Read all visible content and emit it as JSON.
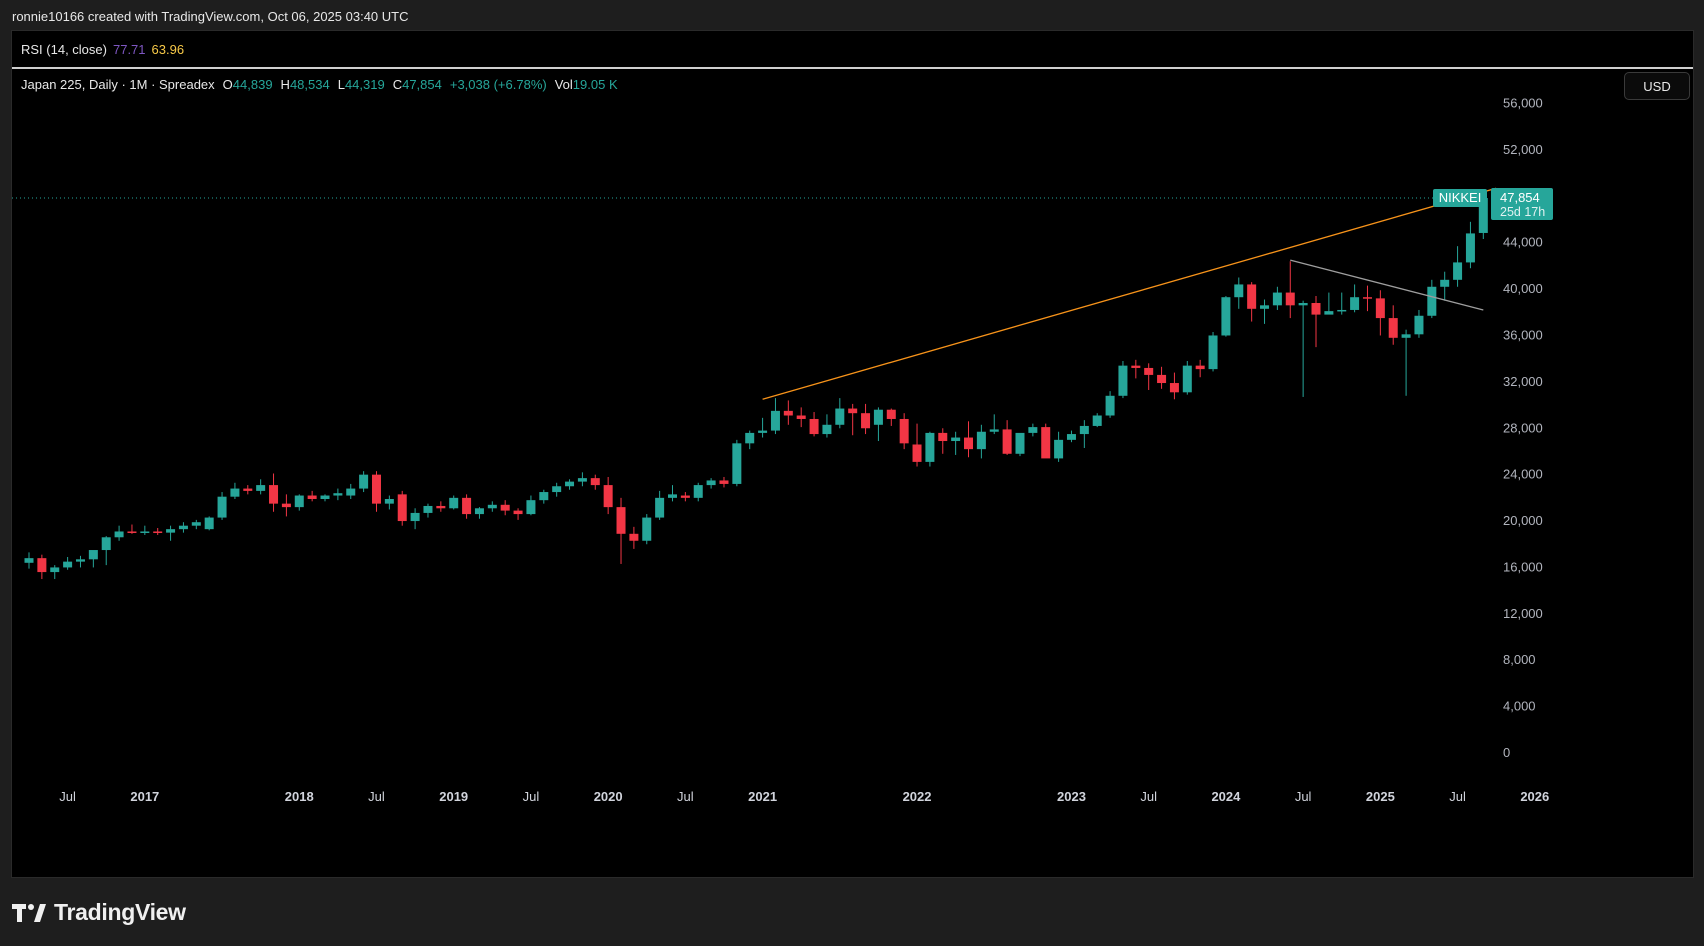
{
  "header": {
    "caption": "ronnie10166 created with TradingView.com, Oct 06, 2025 03:40 UTC"
  },
  "rsi": {
    "name": "RSI (14, close)",
    "value1": "77.71",
    "value2": "63.96"
  },
  "legend": {
    "title": "Japan 225, Daily · 1M · Spreadex",
    "open_label": "O",
    "open": "44,839",
    "high_label": "H",
    "high": "48,534",
    "low_label": "L",
    "low": "44,319",
    "close_label": "C",
    "close": "47,854",
    "change": "+3,038 (+6.78%)",
    "vol_label": "Vol",
    "vol": "19.05 K"
  },
  "currency_button": "USD",
  "price_tag": {
    "symbol": "NIKKEI",
    "price": "47,854",
    "countdown": "25d 17h"
  },
  "watermark": {
    "brand": "TradingView"
  },
  "colors": {
    "up": "#26a69a",
    "down": "#f23645",
    "trendline": "#f7931a",
    "trendline2": "#9e9e9e",
    "background": "#000000"
  },
  "chart_data": {
    "type": "candlestick",
    "symbol": "NIKKEI",
    "ylim": [
      -1000,
      57500
    ],
    "y_ticks": [
      0,
      4000,
      8000,
      12000,
      16000,
      20000,
      24000,
      28000,
      32000,
      36000,
      40000,
      44000,
      52000,
      56000
    ],
    "y_tick_labels": [
      "0",
      "4,000",
      "8,000",
      "12,000",
      "16,000",
      "20,000",
      "24,000",
      "28,000",
      "32,000",
      "36,000",
      "40,000",
      "44,000",
      "52,000",
      "56,000"
    ],
    "x_ticks": [
      {
        "label": "Jul",
        "bold": false,
        "date": "2016-07"
      },
      {
        "label": "2017",
        "bold": true,
        "date": "2017-01"
      },
      {
        "label": "2018",
        "bold": true,
        "date": "2018-01"
      },
      {
        "label": "Jul",
        "bold": false,
        "date": "2018-07"
      },
      {
        "label": "2019",
        "bold": true,
        "date": "2019-01"
      },
      {
        "label": "Jul",
        "bold": false,
        "date": "2019-07"
      },
      {
        "label": "2020",
        "bold": true,
        "date": "2020-01"
      },
      {
        "label": "Jul",
        "bold": false,
        "date": "2020-07"
      },
      {
        "label": "2021",
        "bold": true,
        "date": "2021-01"
      },
      {
        "label": "2022",
        "bold": true,
        "date": "2022-01"
      },
      {
        "label": "2023",
        "bold": true,
        "date": "2023-01"
      },
      {
        "label": "Jul",
        "bold": false,
        "date": "2023-07"
      },
      {
        "label": "2024",
        "bold": true,
        "date": "2024-01"
      },
      {
        "label": "Jul",
        "bold": false,
        "date": "2024-07"
      },
      {
        "label": "2025",
        "bold": true,
        "date": "2025-01"
      },
      {
        "label": "Jul",
        "bold": false,
        "date": "2025-07"
      },
      {
        "label": "2026",
        "bold": true,
        "date": "2026-01"
      }
    ],
    "last_price": 47854,
    "candles": [
      {
        "date": "2016-04",
        "o": 16400,
        "h": 17300,
        "l": 15900,
        "c": 16800
      },
      {
        "date": "2016-05",
        "o": 16800,
        "h": 17100,
        "l": 15000,
        "c": 15600
      },
      {
        "date": "2016-06",
        "o": 15600,
        "h": 16200,
        "l": 15000,
        "c": 16000
      },
      {
        "date": "2016-07",
        "o": 16000,
        "h": 16900,
        "l": 15800,
        "c": 16500
      },
      {
        "date": "2016-08",
        "o": 16500,
        "h": 17000,
        "l": 16000,
        "c": 16700
      },
      {
        "date": "2016-09",
        "o": 16700,
        "h": 17300,
        "l": 16000,
        "c": 17500
      },
      {
        "date": "2016-10",
        "o": 17500,
        "h": 18700,
        "l": 16200,
        "c": 18600
      },
      {
        "date": "2016-11",
        "o": 18600,
        "h": 19600,
        "l": 18300,
        "c": 19100
      },
      {
        "date": "2016-12",
        "o": 19100,
        "h": 19700,
        "l": 18900,
        "c": 19000
      },
      {
        "date": "2017-01",
        "o": 19000,
        "h": 19600,
        "l": 18800,
        "c": 19100
      },
      {
        "date": "2017-02",
        "o": 19100,
        "h": 19400,
        "l": 18800,
        "c": 19000
      },
      {
        "date": "2017-03",
        "o": 19000,
        "h": 19600,
        "l": 18300,
        "c": 19300
      },
      {
        "date": "2017-04",
        "o": 19300,
        "h": 19900,
        "l": 19000,
        "c": 19600
      },
      {
        "date": "2017-05",
        "o": 19600,
        "h": 20100,
        "l": 19300,
        "c": 19900
      },
      {
        "date": "2017-06",
        "o": 19300,
        "h": 20400,
        "l": 19200,
        "c": 20300
      },
      {
        "date": "2017-07",
        "o": 20300,
        "h": 22500,
        "l": 20100,
        "c": 22100
      },
      {
        "date": "2017-08",
        "o": 22100,
        "h": 23300,
        "l": 21900,
        "c": 22800
      },
      {
        "date": "2017-09",
        "o": 22800,
        "h": 23100,
        "l": 22300,
        "c": 22600
      },
      {
        "date": "2017-10",
        "o": 22600,
        "h": 23600,
        "l": 22300,
        "c": 23100
      },
      {
        "date": "2017-11",
        "o": 23100,
        "h": 24100,
        "l": 20800,
        "c": 21500
      },
      {
        "date": "2017-12",
        "o": 21500,
        "h": 22300,
        "l": 20400,
        "c": 21200
      },
      {
        "date": "2018-01",
        "o": 21200,
        "h": 22300,
        "l": 20900,
        "c": 22200
      },
      {
        "date": "2018-02",
        "o": 22200,
        "h": 22600,
        "l": 21700,
        "c": 21900
      },
      {
        "date": "2018-03",
        "o": 21900,
        "h": 22300,
        "l": 21700,
        "c": 22200
      },
      {
        "date": "2018-04",
        "o": 22200,
        "h": 22800,
        "l": 21800,
        "c": 22400
      },
      {
        "date": "2018-05",
        "o": 22200,
        "h": 23200,
        "l": 21900,
        "c": 22800
      },
      {
        "date": "2018-06",
        "o": 22800,
        "h": 24300,
        "l": 22500,
        "c": 24000
      },
      {
        "date": "2018-07",
        "o": 24000,
        "h": 24300,
        "l": 20800,
        "c": 21500
      },
      {
        "date": "2018-08",
        "o": 21500,
        "h": 22200,
        "l": 21000,
        "c": 21900
      },
      {
        "date": "2018-09",
        "o": 22300,
        "h": 22600,
        "l": 19600,
        "c": 20000
      },
      {
        "date": "2018-10",
        "o": 20000,
        "h": 21100,
        "l": 19300,
        "c": 20700
      },
      {
        "date": "2018-11",
        "o": 20700,
        "h": 21500,
        "l": 20300,
        "c": 21300
      },
      {
        "date": "2018-12",
        "o": 21300,
        "h": 21700,
        "l": 20800,
        "c": 21100
      },
      {
        "date": "2019-01",
        "o": 21100,
        "h": 22200,
        "l": 21000,
        "c": 22000
      },
      {
        "date": "2019-02",
        "o": 22000,
        "h": 22300,
        "l": 20200,
        "c": 20600
      },
      {
        "date": "2019-03",
        "o": 20600,
        "h": 21200,
        "l": 20200,
        "c": 21100
      },
      {
        "date": "2019-04",
        "o": 21100,
        "h": 21700,
        "l": 20800,
        "c": 21400
      },
      {
        "date": "2019-05",
        "o": 21400,
        "h": 21800,
        "l": 20500,
        "c": 20900
      },
      {
        "date": "2019-06",
        "o": 20900,
        "h": 21100,
        "l": 20100,
        "c": 20600
      },
      {
        "date": "2019-07",
        "o": 20600,
        "h": 22200,
        "l": 20500,
        "c": 21800
      },
      {
        "date": "2019-08",
        "o": 21800,
        "h": 22700,
        "l": 21500,
        "c": 22500
      },
      {
        "date": "2019-09",
        "o": 22500,
        "h": 23300,
        "l": 22100,
        "c": 23000
      },
      {
        "date": "2019-10",
        "o": 23000,
        "h": 23600,
        "l": 22700,
        "c": 23400
      },
      {
        "date": "2019-11",
        "o": 23400,
        "h": 24200,
        "l": 23000,
        "c": 23700
      },
      {
        "date": "2019-12",
        "o": 23700,
        "h": 24000,
        "l": 22700,
        "c": 23100
      },
      {
        "date": "2020-01",
        "o": 23100,
        "h": 23800,
        "l": 20600,
        "c": 21200
      },
      {
        "date": "2020-02",
        "o": 21200,
        "h": 22000,
        "l": 16300,
        "c": 18900
      },
      {
        "date": "2020-03",
        "o": 18900,
        "h": 19500,
        "l": 17600,
        "c": 18300
      },
      {
        "date": "2020-04",
        "o": 18300,
        "h": 20600,
        "l": 18000,
        "c": 20300
      },
      {
        "date": "2020-05",
        "o": 20300,
        "h": 22600,
        "l": 20100,
        "c": 22000
      },
      {
        "date": "2020-06",
        "o": 22000,
        "h": 23100,
        "l": 21700,
        "c": 22300
      },
      {
        "date": "2020-07",
        "o": 22200,
        "h": 22500,
        "l": 21700,
        "c": 22000
      },
      {
        "date": "2020-08",
        "o": 22000,
        "h": 23300,
        "l": 21700,
        "c": 23100
      },
      {
        "date": "2020-09",
        "o": 23100,
        "h": 23700,
        "l": 22800,
        "c": 23500
      },
      {
        "date": "2020-10",
        "o": 23500,
        "h": 23800,
        "l": 22900,
        "c": 23200
      },
      {
        "date": "2020-11",
        "o": 23200,
        "h": 27000,
        "l": 23000,
        "c": 26700
      },
      {
        "date": "2020-12",
        "o": 26700,
        "h": 27800,
        "l": 26200,
        "c": 27600
      },
      {
        "date": "2021-01",
        "o": 27600,
        "h": 28900,
        "l": 27200,
        "c": 27800
      },
      {
        "date": "2021-02",
        "o": 27800,
        "h": 30600,
        "l": 27500,
        "c": 29500
      },
      {
        "date": "2021-03",
        "o": 29500,
        "h": 30400,
        "l": 28300,
        "c": 29100
      },
      {
        "date": "2021-04",
        "o": 29100,
        "h": 29800,
        "l": 28100,
        "c": 28800
      },
      {
        "date": "2021-05",
        "o": 28800,
        "h": 29400,
        "l": 27300,
        "c": 27500
      },
      {
        "date": "2021-06",
        "o": 27500,
        "h": 29200,
        "l": 27200,
        "c": 28300
      },
      {
        "date": "2021-07",
        "o": 28300,
        "h": 30600,
        "l": 28000,
        "c": 29700
      },
      {
        "date": "2021-08",
        "o": 29700,
        "h": 30100,
        "l": 27400,
        "c": 29300
      },
      {
        "date": "2021-09",
        "o": 29300,
        "h": 30100,
        "l": 27500,
        "c": 28000
      },
      {
        "date": "2021-10",
        "o": 28300,
        "h": 29800,
        "l": 26900,
        "c": 29600
      },
      {
        "date": "2021-11",
        "o": 29600,
        "h": 29700,
        "l": 28200,
        "c": 28800
      },
      {
        "date": "2021-12",
        "o": 28800,
        "h": 29300,
        "l": 26200,
        "c": 26700
      },
      {
        "date": "2022-01",
        "o": 26600,
        "h": 28400,
        "l": 24700,
        "c": 25100
      },
      {
        "date": "2022-02",
        "o": 25100,
        "h": 27700,
        "l": 24700,
        "c": 27600
      },
      {
        "date": "2022-03",
        "o": 27600,
        "h": 28000,
        "l": 25800,
        "c": 26900
      },
      {
        "date": "2022-04",
        "o": 26900,
        "h": 27700,
        "l": 25700,
        "c": 27200
      },
      {
        "date": "2022-05",
        "o": 27200,
        "h": 28600,
        "l": 25500,
        "c": 26200
      },
      {
        "date": "2022-06",
        "o": 26200,
        "h": 28300,
        "l": 25400,
        "c": 27700
      },
      {
        "date": "2022-07",
        "o": 27700,
        "h": 29200,
        "l": 27500,
        "c": 27900
      },
      {
        "date": "2022-08",
        "o": 27900,
        "h": 28700,
        "l": 25700,
        "c": 25800
      },
      {
        "date": "2022-09",
        "o": 25800,
        "h": 27300,
        "l": 25600,
        "c": 27600
      },
      {
        "date": "2022-10",
        "o": 27600,
        "h": 28400,
        "l": 27300,
        "c": 28100
      },
      {
        "date": "2022-11",
        "o": 28100,
        "h": 28400,
        "l": 25700,
        "c": 25400
      },
      {
        "date": "2022-12",
        "o": 25400,
        "h": 27700,
        "l": 25100,
        "c": 27000
      },
      {
        "date": "2023-01",
        "o": 27000,
        "h": 27800,
        "l": 26800,
        "c": 27500
      },
      {
        "date": "2023-02",
        "o": 27500,
        "h": 28700,
        "l": 26300,
        "c": 28200
      },
      {
        "date": "2023-03",
        "o": 28200,
        "h": 29300,
        "l": 28100,
        "c": 29100
      },
      {
        "date": "2023-04",
        "o": 29100,
        "h": 31200,
        "l": 28900,
        "c": 30800
      },
      {
        "date": "2023-05",
        "o": 30800,
        "h": 33800,
        "l": 30600,
        "c": 33400
      },
      {
        "date": "2023-06",
        "o": 33400,
        "h": 33900,
        "l": 32300,
        "c": 33200
      },
      {
        "date": "2023-07",
        "o": 33200,
        "h": 33600,
        "l": 31300,
        "c": 32600
      },
      {
        "date": "2023-08",
        "o": 32600,
        "h": 33300,
        "l": 31400,
        "c": 31900
      },
      {
        "date": "2023-09",
        "o": 31900,
        "h": 32800,
        "l": 30500,
        "c": 31100
      },
      {
        "date": "2023-10",
        "o": 31100,
        "h": 33800,
        "l": 30900,
        "c": 33400
      },
      {
        "date": "2023-11",
        "o": 33400,
        "h": 33900,
        "l": 32400,
        "c": 33100
      },
      {
        "date": "2023-12",
        "o": 33100,
        "h": 36300,
        "l": 32900,
        "c": 36000
      },
      {
        "date": "2024-01",
        "o": 36000,
        "h": 39400,
        "l": 35900,
        "c": 39300
      },
      {
        "date": "2024-02",
        "o": 39300,
        "h": 41000,
        "l": 38300,
        "c": 40400
      },
      {
        "date": "2024-03",
        "o": 40400,
        "h": 40600,
        "l": 37200,
        "c": 38300
      },
      {
        "date": "2024-04",
        "o": 38300,
        "h": 39100,
        "l": 37000,
        "c": 38600
      },
      {
        "date": "2024-05",
        "o": 38600,
        "h": 40200,
        "l": 38200,
        "c": 39700
      },
      {
        "date": "2024-06",
        "o": 39700,
        "h": 42400,
        "l": 37500,
        "c": 38600
      },
      {
        "date": "2024-07",
        "o": 38600,
        "h": 39000,
        "l": 30700,
        "c": 38800
      },
      {
        "date": "2024-08",
        "o": 38800,
        "h": 39400,
        "l": 35000,
        "c": 37800
      },
      {
        "date": "2024-09",
        "o": 37800,
        "h": 39700,
        "l": 37900,
        "c": 38100
      },
      {
        "date": "2024-10",
        "o": 38100,
        "h": 39700,
        "l": 37800,
        "c": 38200
      },
      {
        "date": "2024-11",
        "o": 38200,
        "h": 40400,
        "l": 38000,
        "c": 39300
      },
      {
        "date": "2024-12",
        "o": 39300,
        "h": 40300,
        "l": 38100,
        "c": 39200
      },
      {
        "date": "2025-01",
        "o": 39200,
        "h": 39900,
        "l": 36000,
        "c": 37500
      },
      {
        "date": "2025-02",
        "o": 37500,
        "h": 38600,
        "l": 35200,
        "c": 35800
      },
      {
        "date": "2025-03",
        "o": 35800,
        "h": 36500,
        "l": 30800,
        "c": 36100
      },
      {
        "date": "2025-04",
        "o": 36100,
        "h": 38200,
        "l": 35800,
        "c": 37700
      },
      {
        "date": "2025-05",
        "o": 37700,
        "h": 40800,
        "l": 37500,
        "c": 40200
      },
      {
        "date": "2025-06",
        "o": 40200,
        "h": 41500,
        "l": 39000,
        "c": 40800
      },
      {
        "date": "2025-07",
        "o": 40800,
        "h": 43700,
        "l": 40200,
        "c": 42300
      },
      {
        "date": "2025-08",
        "o": 42300,
        "h": 45800,
        "l": 41800,
        "c": 44800
      },
      {
        "date": "2025-09",
        "o": 44839,
        "h": 48534,
        "l": 44319,
        "c": 47854
      }
    ],
    "trendlines": [
      {
        "color": "#f7931a",
        "from": {
          "date": "2021-01",
          "price": 30500
        },
        "to": {
          "date": "2025-10",
          "price": 48700
        }
      },
      {
        "color": "#9e9e9e",
        "from": {
          "date": "2024-06",
          "price": 42500
        },
        "to": {
          "date": "2025-09",
          "price": 38200
        }
      }
    ]
  }
}
